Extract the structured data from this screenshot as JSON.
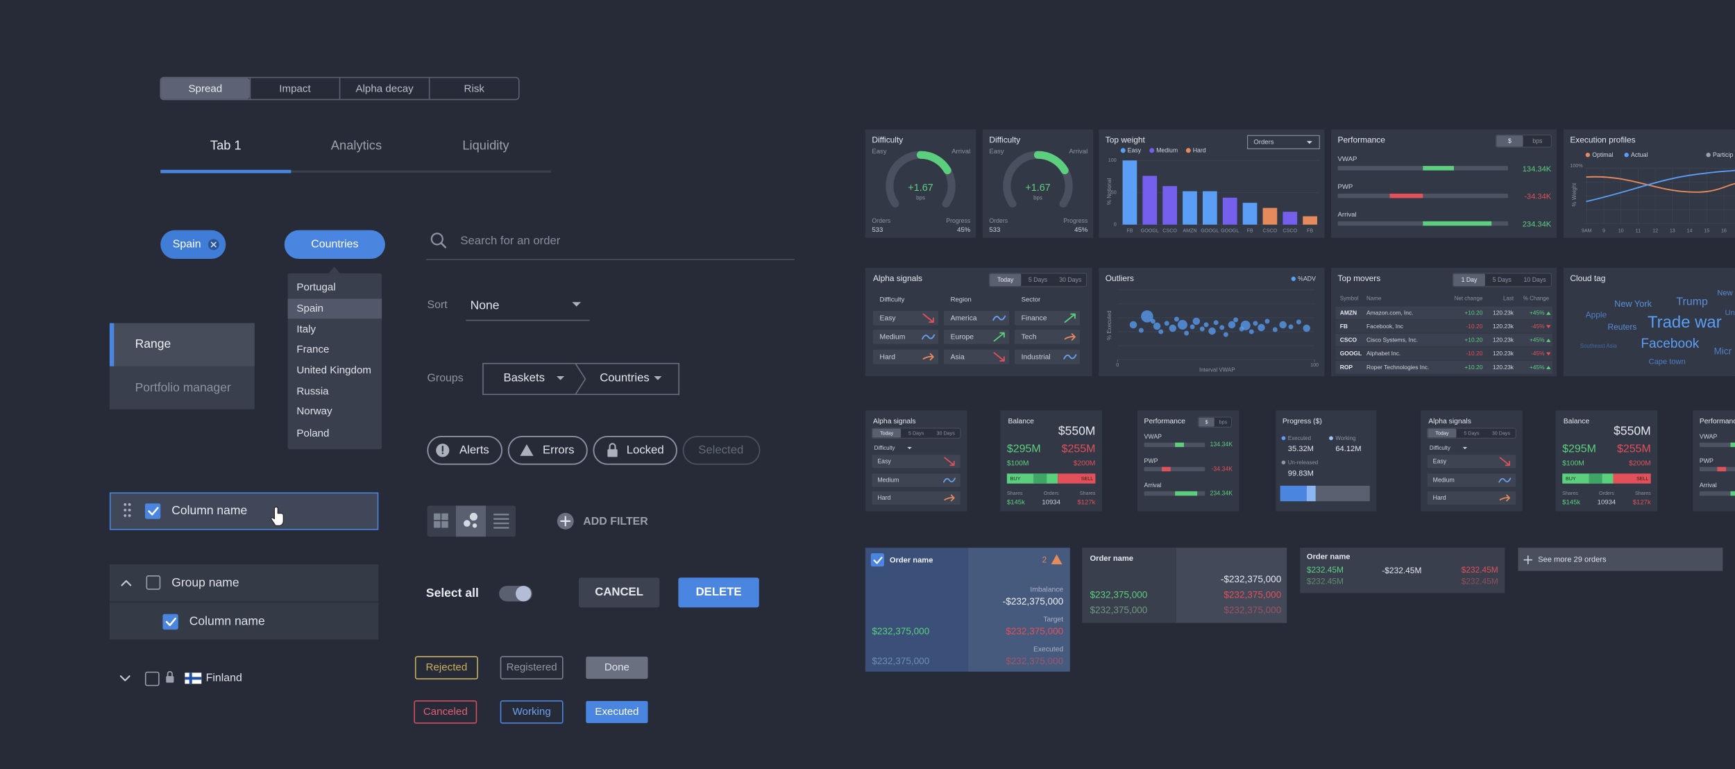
{
  "segmented": [
    "Spread",
    "Impact",
    "Alpha decay",
    "Risk"
  ],
  "tabs": [
    "Tab 1",
    "Analytics",
    "Liquidity"
  ],
  "chips": [
    "Spain",
    "Countries"
  ],
  "dropdown": [
    "Portugal",
    "Spain",
    "Italy",
    "France",
    "United Kingdom",
    "Russia",
    "Norway",
    "Poland"
  ],
  "nav": [
    "Range",
    "Portfolio manager"
  ],
  "rows": {
    "column": "Column name",
    "group": "Group name",
    "child": "Column name",
    "country": "Finland"
  },
  "search": "Search for an order",
  "sort": {
    "label": "Sort",
    "value": "None"
  },
  "groups": {
    "label": "Groups",
    "items": [
      "Baskets",
      "Countries"
    ]
  },
  "pills": [
    "Alerts",
    "Errors",
    "Locked",
    "Selected"
  ],
  "add_filter": "ADD FILTER",
  "select_all": "Select all",
  "buttons": [
    "CANCEL",
    "DELETE"
  ],
  "statuses": [
    "Rejected",
    "Registered",
    "Done",
    "Canceled",
    "Working",
    "Executed"
  ],
  "difficulty": {
    "title": "Difficulty",
    "level": "Easy",
    "benchmark": "Arrival",
    "value": "+1.67",
    "unit": "bps",
    "orders_label": "Orders",
    "orders": "533",
    "progress_label": "Progress",
    "progress": "45%"
  },
  "top_weight": {
    "type": "bar",
    "title": "Top weight",
    "legend": [
      {
        "name": "Easy",
        "color": "#5b9ef5"
      },
      {
        "name": "Medium",
        "color": "#7560ee"
      },
      {
        "name": "Hard",
        "color": "#e58a5c"
      }
    ],
    "select": "Orders",
    "ylabel": "% Notional",
    "ylim": [
      0,
      100
    ],
    "yticks": [
      0,
      50,
      100
    ],
    "categories": [
      "FB",
      "GOOGL",
      "CSCO",
      "AMZN",
      "GOOGL",
      "GOOGL",
      "FB",
      "CSCO",
      "CSCO",
      "FB"
    ],
    "values": [
      100,
      76,
      60,
      52,
      52,
      42,
      34,
      26,
      20,
      13
    ],
    "colors": [
      "#5b9ef5",
      "#7560ee",
      "#7560ee",
      "#5b9ef5",
      "#5b9ef5",
      "#7560ee",
      "#5b9ef5",
      "#e58a5c",
      "#7560ee",
      "#e58a5c"
    ]
  },
  "performance": {
    "title": "Performance",
    "toggle": [
      "$",
      "bps"
    ],
    "rows": [
      {
        "name": "VWAP",
        "value": "134.34K"
      },
      {
        "name": "PWP",
        "value": "-34.34K"
      },
      {
        "name": "Arrival",
        "value": "234.34K"
      }
    ]
  },
  "execution": {
    "title": "Execution profiles",
    "legend": [
      "Optimal",
      "Actual",
      "Particip"
    ],
    "ylabel": "% Weight",
    "ytick": "100%",
    "xticks": [
      "9AM",
      "9",
      "10",
      "11",
      "12",
      "13",
      "14",
      "15",
      "16"
    ]
  },
  "alpha_signals": {
    "title": "Alpha signals",
    "toggle": [
      "Today",
      "5 Days",
      "30 Days"
    ],
    "columns": [
      {
        "name": "Difficulty",
        "items": [
          "Easy",
          "Medium",
          "Hard"
        ]
      },
      {
        "name": "Region",
        "items": [
          "America",
          "Europe",
          "Asia"
        ]
      },
      {
        "name": "Sector",
        "items": [
          "Finance",
          "Tech",
          "Industrial"
        ]
      }
    ]
  },
  "outliers": {
    "type": "scatter",
    "title": "Outliers",
    "legend": "%ADV",
    "ylabel": "% Executed",
    "xlabel": "Interval VWAP",
    "xlim": [
      0,
      100
    ],
    "ylim": [
      0,
      100
    ],
    "xticks": [
      0,
      100
    ],
    "x": [
      8,
      12,
      15,
      18,
      20,
      22,
      25,
      28,
      30,
      33,
      35,
      38,
      40,
      43,
      45,
      48,
      50,
      53,
      55,
      58,
      60,
      63,
      65,
      68,
      70,
      73,
      76,
      80,
      84,
      88,
      92,
      96
    ],
    "y": [
      50,
      42,
      62,
      55,
      48,
      40,
      52,
      45,
      58,
      50,
      38,
      47,
      55,
      44,
      50,
      41,
      53,
      46,
      36,
      50,
      57,
      44,
      49,
      40,
      52,
      46,
      55,
      43,
      50,
      47,
      54,
      45
    ],
    "size": [
      3,
      2,
      5,
      2,
      3,
      2,
      2,
      3,
      2,
      4,
      2,
      2,
      3,
      2,
      2,
      3,
      2,
      2,
      2,
      3,
      2,
      2,
      4,
      2,
      2,
      3,
      2,
      2,
      3,
      2,
      2,
      3
    ]
  },
  "top_movers": {
    "title": "Top movers",
    "toggle": [
      "1 Day",
      "5 Days",
      "10 Days"
    ],
    "columns": [
      "Symbol",
      "Name",
      "Net change",
      "Last",
      "% Change"
    ],
    "rows": [
      [
        "AMZN",
        "Amazon.com, Inc.",
        "+10.20",
        "120.23k",
        "+45%"
      ],
      [
        "FB",
        "Facebook, Inc",
        "-10.20",
        "120.23k",
        "-45%"
      ],
      [
        "CSCO",
        "Cisco Systems, Inc.",
        "+10.20",
        "120.23k",
        "+45%"
      ],
      [
        "GOOGL",
        "Alphabet Inc.",
        "-10.20",
        "120.23k",
        "-45%"
      ],
      [
        "ROP",
        "Roper Technologies Inc.",
        "+10.20",
        "120.23k",
        "+45%"
      ]
    ]
  },
  "cloud_tag": {
    "title": "Cloud tag",
    "words": [
      "New",
      "New York",
      "Trump",
      "Apple",
      "Trade war",
      "Reuters",
      "Un",
      "Facebook",
      "Southeast Asia",
      "Cape town",
      "Micr"
    ]
  },
  "balance": {
    "title": "Balance",
    "total": "$550M",
    "buy": "$295M",
    "sell": "$255M",
    "buy_sub": "$100M",
    "sell_sub": "$200M",
    "bar": [
      "BUY",
      "SELL"
    ],
    "stats": [
      {
        "label": "Shares",
        "value": "$145k"
      },
      {
        "label": "Orders",
        "value": "10934"
      },
      {
        "label": "Shares",
        "value": "$127k"
      }
    ]
  },
  "progress": {
    "title": "Progress ($)",
    "items": [
      {
        "label": "Executed",
        "value": "35.32M"
      },
      {
        "label": "Working",
        "value": "64.12M"
      },
      {
        "label": "Un-released",
        "value": "99.83M"
      }
    ]
  },
  "orders": [
    {
      "name": "Order name",
      "alerts": "2",
      "imbalance_label": "Imbalance",
      "imbalance": "-$232,375,000",
      "target_label": "Target",
      "target": [
        "$232,375,000",
        "$232,375,000"
      ],
      "executed_label": "Executed",
      "executed": [
        "$232,375,000",
        "$232,375,000"
      ]
    },
    {
      "name": "Order name",
      "imbalance": "-$232,375,000",
      "target": [
        "$232,375,000",
        "$232,375,000"
      ],
      "executed": [
        "$232,375,000",
        "$232,375,000"
      ]
    },
    {
      "name": "Order name",
      "target": [
        "$232.45M",
        "-$232.45M",
        "$232.45M"
      ],
      "executed": [
        "$232.45M",
        "$232.45M"
      ]
    }
  ],
  "see_more": "See more 29 orders"
}
